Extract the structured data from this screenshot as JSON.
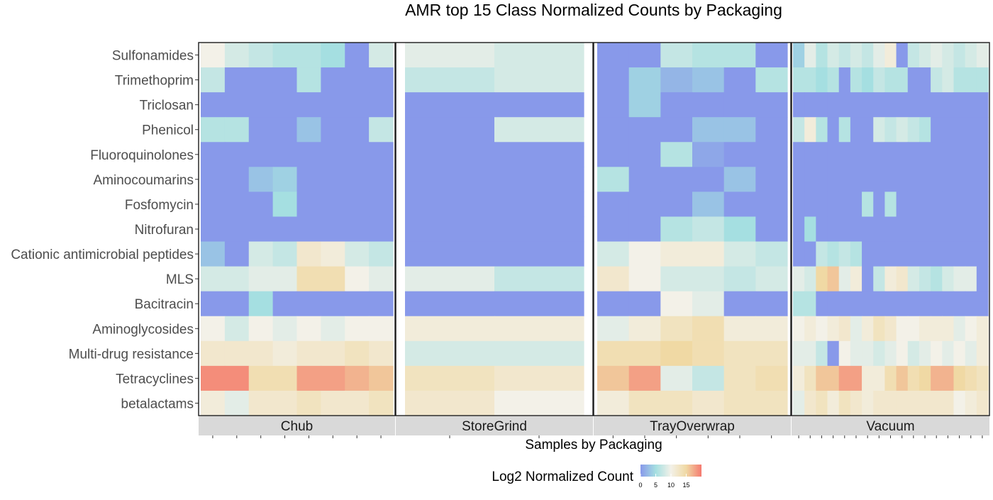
{
  "chart_data": {
    "type": "heatmap",
    "title": "AMR top 15 Class Normalized Counts by Packaging",
    "xlabel": "Samples by Packaging",
    "ylabel": "",
    "rows": [
      "Sulfonamides",
      "Trimethoprim",
      "Triclosan",
      "Phenicol",
      "Fluoroquinolones",
      "Aminocoumarins",
      "Fosfomycin",
      "Nitrofuran",
      "Cationic antimicrobial peptides",
      "MLS",
      "Bacitracin",
      "Aminoglycosides",
      "Multi-drug resistance",
      "Tetracyclines",
      "betalactams"
    ],
    "legend": {
      "title": "Log2 Normalized Count",
      "ticks": [
        0,
        5,
        10,
        15
      ],
      "range": [
        0,
        20
      ],
      "position": "bottom"
    },
    "color_scale": [
      "#8899ea",
      "#a5dfe1",
      "#f3f1e8",
      "#f0d9a4",
      "#f57a70"
    ],
    "panels": [
      {
        "name": "Chub",
        "values": [
          [
            10,
            8,
            7,
            6,
            6,
            5,
            0,
            8
          ],
          [
            7,
            0,
            0,
            0,
            6,
            0,
            0,
            0
          ],
          [
            0,
            0,
            0,
            0,
            0,
            0,
            0,
            0
          ],
          [
            6,
            6,
            0,
            0,
            3,
            0,
            0,
            7
          ],
          [
            0,
            0,
            0,
            0,
            0,
            0,
            0,
            0
          ],
          [
            0,
            0,
            3,
            4,
            0,
            0,
            0,
            0
          ],
          [
            0,
            0,
            0,
            5,
            0,
            0,
            0,
            0
          ],
          [
            0,
            0,
            0,
            0,
            0,
            0,
            0,
            0
          ],
          [
            3,
            0,
            8,
            7,
            12,
            11,
            8,
            7
          ],
          [
            8,
            8,
            9,
            9,
            14,
            14,
            10,
            9
          ],
          [
            0,
            0,
            5,
            0,
            0,
            0,
            0,
            0
          ],
          [
            10,
            8,
            10,
            9,
            10,
            9,
            10,
            10
          ],
          [
            12,
            12,
            12,
            11,
            12,
            12,
            13,
            12
          ],
          [
            19,
            19,
            14,
            14,
            18,
            18,
            17,
            16
          ],
          [
            11,
            9,
            12,
            12,
            13,
            12,
            12,
            13
          ]
        ]
      },
      {
        "name": "StoreGrind",
        "values": [
          [
            9,
            8
          ],
          [
            7,
            8
          ],
          [
            0,
            0
          ],
          [
            0,
            8
          ],
          [
            0,
            0
          ],
          [
            0,
            0
          ],
          [
            0,
            0
          ],
          [
            0,
            0
          ],
          [
            0,
            0
          ],
          [
            9,
            7
          ],
          [
            0,
            0
          ],
          [
            11,
            11
          ],
          [
            8,
            8
          ],
          [
            13,
            12
          ],
          [
            12,
            10
          ]
        ]
      },
      {
        "name": "TrayOverwrap",
        "values": [
          [
            0,
            0,
            7,
            6,
            6,
            0
          ],
          [
            0,
            4,
            2,
            3,
            0,
            6
          ],
          [
            0,
            4,
            0,
            0,
            0,
            0
          ],
          [
            0,
            0,
            0,
            3,
            3,
            0
          ],
          [
            0,
            0,
            6,
            1,
            0,
            0
          ],
          [
            6,
            0,
            0,
            0,
            3,
            0
          ],
          [
            0,
            0,
            0,
            3,
            0,
            0
          ],
          [
            0,
            0,
            6,
            7,
            5,
            0
          ],
          [
            8,
            10,
            11,
            11,
            8,
            7
          ],
          [
            12,
            10,
            8,
            8,
            7,
            8
          ],
          [
            0,
            0,
            10,
            9,
            0,
            0
          ],
          [
            9,
            11,
            13,
            14,
            11,
            11
          ],
          [
            14,
            14,
            15,
            14,
            13,
            13
          ],
          [
            16,
            18,
            9,
            7,
            13,
            14
          ],
          [
            11,
            13,
            13,
            12,
            13,
            13
          ]
        ]
      },
      {
        "name": "Vacuum",
        "values": [
          [
            4,
            9,
            6,
            8,
            7,
            8,
            7,
            9,
            11,
            0,
            7,
            8,
            9,
            8,
            7,
            8,
            9
          ],
          [
            6,
            6,
            5,
            6,
            0,
            6,
            5,
            7,
            6,
            6,
            0,
            0,
            7,
            8,
            6,
            6,
            6
          ],
          [
            0,
            0,
            0,
            0,
            0,
            0,
            0,
            0,
            0,
            0,
            0,
            0,
            0,
            0,
            0,
            0,
            0
          ],
          [
            7,
            11,
            6,
            0,
            6,
            0,
            0,
            8,
            7,
            8,
            7,
            6,
            0,
            0,
            0,
            0,
            0
          ],
          [
            0,
            0,
            0,
            0,
            0,
            0,
            0,
            0,
            0,
            0,
            0,
            0,
            0,
            0,
            0,
            0,
            0
          ],
          [
            0,
            0,
            0,
            0,
            0,
            0,
            0,
            0,
            0,
            0,
            0,
            0,
            0,
            0,
            0,
            0,
            0
          ],
          [
            0,
            0,
            0,
            0,
            0,
            0,
            6,
            0,
            6,
            0,
            0,
            0,
            0,
            0,
            0,
            0,
            0
          ],
          [
            0,
            5,
            0,
            0,
            0,
            0,
            0,
            0,
            0,
            0,
            0,
            0,
            0,
            0,
            0,
            0,
            0
          ],
          [
            0,
            0,
            7,
            6,
            7,
            6,
            0,
            0,
            0,
            0,
            0,
            0,
            0,
            0,
            0,
            0,
            0
          ],
          [
            9,
            8,
            15,
            16,
            9,
            11,
            0,
            7,
            11,
            12,
            8,
            7,
            6,
            8,
            9,
            9,
            0
          ],
          [
            6,
            6,
            0,
            0,
            0,
            0,
            0,
            0,
            0,
            0,
            0,
            0,
            0,
            0,
            0,
            0,
            0
          ],
          [
            10,
            11,
            10,
            11,
            12,
            9,
            11,
            13,
            12,
            10,
            10,
            11,
            11,
            11,
            9,
            10,
            11
          ],
          [
            9,
            9,
            7,
            0,
            10,
            9,
            9,
            8,
            9,
            10,
            8,
            9,
            10,
            9,
            10,
            9,
            11
          ],
          [
            11,
            13,
            16,
            16,
            18,
            18,
            11,
            11,
            14,
            16,
            14,
            15,
            17,
            17,
            15,
            14,
            13
          ],
          [
            9,
            12,
            13,
            11,
            13,
            12,
            11,
            12,
            12,
            12,
            12,
            12,
            12,
            12,
            10,
            11,
            12
          ]
        ]
      }
    ]
  }
}
